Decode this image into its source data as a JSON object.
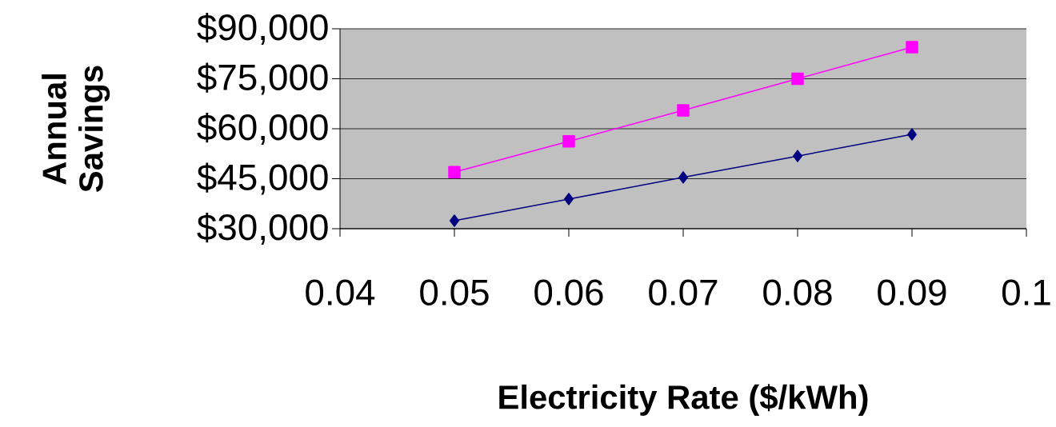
{
  "chart_data": {
    "type": "line",
    "xlabel": "Electricity Rate ($/kWh)",
    "ylabel": "Annual Savings",
    "x": [
      0.05,
      0.06,
      0.07,
      0.08,
      0.09
    ],
    "series": [
      {
        "color": "#ff00ff",
        "marker": "square",
        "values": [
          47000,
          56200,
          65500,
          75000,
          84500
        ]
      },
      {
        "color": "#000080",
        "marker": "diamond",
        "values": [
          32400,
          38900,
          45400,
          51800,
          58300
        ]
      }
    ],
    "xlim": [
      0.04,
      0.1
    ],
    "xticks": [
      0.04,
      0.05,
      0.06,
      0.07,
      0.08,
      0.09,
      0.1
    ],
    "ylim": [
      30000,
      90000
    ],
    "yticks": [
      {
        "value": 30000,
        "label": "$30,000"
      },
      {
        "value": 45000,
        "label": "$45,000"
      },
      {
        "value": 60000,
        "label": "$60,000"
      },
      {
        "value": 75000,
        "label": "$75,000"
      },
      {
        "value": 90000,
        "label": "$90,000"
      }
    ],
    "grid": "y",
    "line_style": "solid"
  }
}
